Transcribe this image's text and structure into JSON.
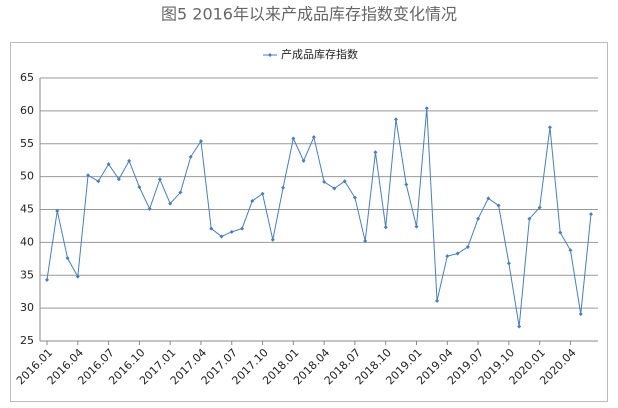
{
  "chart_data": {
    "type": "line",
    "title": "图5  2016年以来产成品库存指数变化情况",
    "categories": [
      "2016.01",
      null,
      null,
      "2016.04",
      null,
      null,
      "2016.07",
      null,
      null,
      "2016.10",
      null,
      null,
      "2017.01",
      null,
      null,
      "2017.04",
      null,
      null,
      "2017.07",
      null,
      null,
      "2017.10",
      null,
      null,
      "2018.01",
      null,
      null,
      "2018.04",
      null,
      null,
      "2018.07",
      null,
      null,
      "2018.10",
      null,
      null,
      "2019.01",
      null,
      null,
      "2019.04",
      null,
      null,
      "2019.07",
      null,
      null,
      "2019.10",
      null,
      null,
      "2020.01",
      null,
      null,
      "2020.04",
      null,
      null
    ],
    "series": [
      {
        "name": "产成品库存指数",
        "color": "#4a7ebb",
        "values": [
          34.3,
          44.8,
          37.6,
          34.8,
          50.2,
          49.3,
          51.9,
          49.6,
          52.4,
          48.4,
          45.1,
          49.6,
          45.9,
          47.6,
          53.0,
          55.4,
          42.1,
          40.9,
          41.6,
          42.1,
          46.3,
          47.4,
          40.4,
          48.3,
          55.8,
          52.4,
          56.0,
          49.2,
          48.2,
          49.3,
          46.8,
          40.2,
          53.7,
          42.3,
          58.7,
          48.8,
          42.4,
          60.4,
          31.1,
          37.9,
          38.3,
          39.3,
          43.6,
          46.7,
          45.6,
          36.8,
          27.2,
          43.6,
          45.3,
          57.5,
          41.5,
          38.8,
          29.1,
          44.3
        ]
      }
    ],
    "ylim": [
      25,
      65
    ],
    "yticks": [
      25,
      30,
      35,
      40,
      45,
      50,
      55,
      60,
      65
    ],
    "grid": true,
    "legend": "top"
  }
}
